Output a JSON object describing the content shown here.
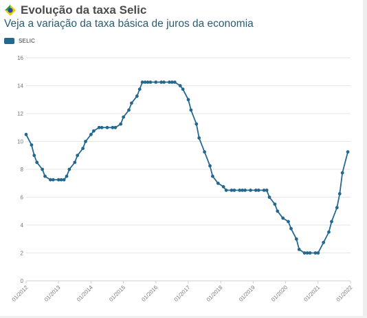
{
  "header": {
    "title": "Evolução da taxa Selic",
    "subtitle": "Veja a variação da taxa básica de juros da economia"
  },
  "legend": {
    "label": "SELIC"
  },
  "icons": {
    "flag": "brazil-flag-icon"
  },
  "colors": {
    "series": "#24678f",
    "grid": "#e6e6e6",
    "axis": "#cfcfcf",
    "text": "#777777"
  },
  "chart_data": {
    "type": "line",
    "title": "Evolução da taxa Selic",
    "subtitle": "Veja a variação da taxa básica de juros da economia",
    "xlabel": "",
    "ylabel": "",
    "ylim": [
      0,
      16
    ],
    "yticks": [
      0,
      2,
      4,
      6,
      8,
      10,
      12,
      14,
      16
    ],
    "xlim": [
      "2012-01",
      "2022-01"
    ],
    "xticks": [
      "01/2012",
      "01/2013",
      "01/2014",
      "01/2015",
      "01/2016",
      "01/2017",
      "01/2018",
      "01/2019",
      "01/2020",
      "01/2021",
      "01/2022"
    ],
    "grid": "horizontal",
    "legend_position": "top-left",
    "series": [
      {
        "name": "SELIC",
        "points": [
          [
            "2012-01",
            10.5
          ],
          [
            "2012-03",
            9.75
          ],
          [
            "2012-04",
            9.0
          ],
          [
            "2012-05",
            8.5
          ],
          [
            "2012-07",
            8.0
          ],
          [
            "2012-08",
            7.5
          ],
          [
            "2012-10",
            7.25
          ],
          [
            "2012-11",
            7.25
          ],
          [
            "2013-01",
            7.25
          ],
          [
            "2013-02",
            7.25
          ],
          [
            "2013-03",
            7.25
          ],
          [
            "2013-04",
            7.5
          ],
          [
            "2013-05",
            8.0
          ],
          [
            "2013-07",
            8.5
          ],
          [
            "2013-08",
            9.0
          ],
          [
            "2013-10",
            9.5
          ],
          [
            "2013-11",
            10.0
          ],
          [
            "2014-01",
            10.5
          ],
          [
            "2014-02",
            10.75
          ],
          [
            "2014-04",
            11.0
          ],
          [
            "2014-05",
            11.0
          ],
          [
            "2014-07",
            11.0
          ],
          [
            "2014-09",
            11.0
          ],
          [
            "2014-10",
            11.0
          ],
          [
            "2014-12",
            11.25
          ],
          [
            "2015-01",
            11.75
          ],
          [
            "2015-03",
            12.25
          ],
          [
            "2015-04",
            12.75
          ],
          [
            "2015-06",
            13.25
          ],
          [
            "2015-07",
            13.75
          ],
          [
            "2015-08",
            14.25
          ],
          [
            "2015-09",
            14.25
          ],
          [
            "2015-10",
            14.25
          ],
          [
            "2015-11",
            14.25
          ],
          [
            "2016-01",
            14.25
          ],
          [
            "2016-03",
            14.25
          ],
          [
            "2016-04",
            14.25
          ],
          [
            "2016-06",
            14.25
          ],
          [
            "2016-07",
            14.25
          ],
          [
            "2016-08",
            14.25
          ],
          [
            "2016-10",
            14.0
          ],
          [
            "2016-11",
            13.75
          ],
          [
            "2017-01",
            13.0
          ],
          [
            "2017-02",
            12.25
          ],
          [
            "2017-04",
            11.25
          ],
          [
            "2017-05",
            10.25
          ],
          [
            "2017-07",
            9.25
          ],
          [
            "2017-09",
            8.25
          ],
          [
            "2017-10",
            7.5
          ],
          [
            "2017-12",
            7.0
          ],
          [
            "2018-02",
            6.75
          ],
          [
            "2018-03",
            6.5
          ],
          [
            "2018-05",
            6.5
          ],
          [
            "2018-06",
            6.5
          ],
          [
            "2018-08",
            6.5
          ],
          [
            "2018-09",
            6.5
          ],
          [
            "2018-10",
            6.5
          ],
          [
            "2018-12",
            6.5
          ],
          [
            "2019-02",
            6.5
          ],
          [
            "2019-03",
            6.5
          ],
          [
            "2019-05",
            6.5
          ],
          [
            "2019-06",
            6.5
          ],
          [
            "2019-07",
            6.0
          ],
          [
            "2019-09",
            5.5
          ],
          [
            "2019-10",
            5.0
          ],
          [
            "2019-12",
            4.5
          ],
          [
            "2020-02",
            4.25
          ],
          [
            "2020-03",
            3.75
          ],
          [
            "2020-05",
            3.0
          ],
          [
            "2020-06",
            2.25
          ],
          [
            "2020-08",
            2.0
          ],
          [
            "2020-09",
            2.0
          ],
          [
            "2020-10",
            2.0
          ],
          [
            "2020-12",
            2.0
          ],
          [
            "2021-01",
            2.0
          ],
          [
            "2021-03",
            2.75
          ],
          [
            "2021-05",
            3.5
          ],
          [
            "2021-06",
            4.25
          ],
          [
            "2021-08",
            5.25
          ],
          [
            "2021-09",
            6.25
          ],
          [
            "2021-10",
            7.75
          ],
          [
            "2021-12",
            9.25
          ]
        ]
      }
    ]
  }
}
